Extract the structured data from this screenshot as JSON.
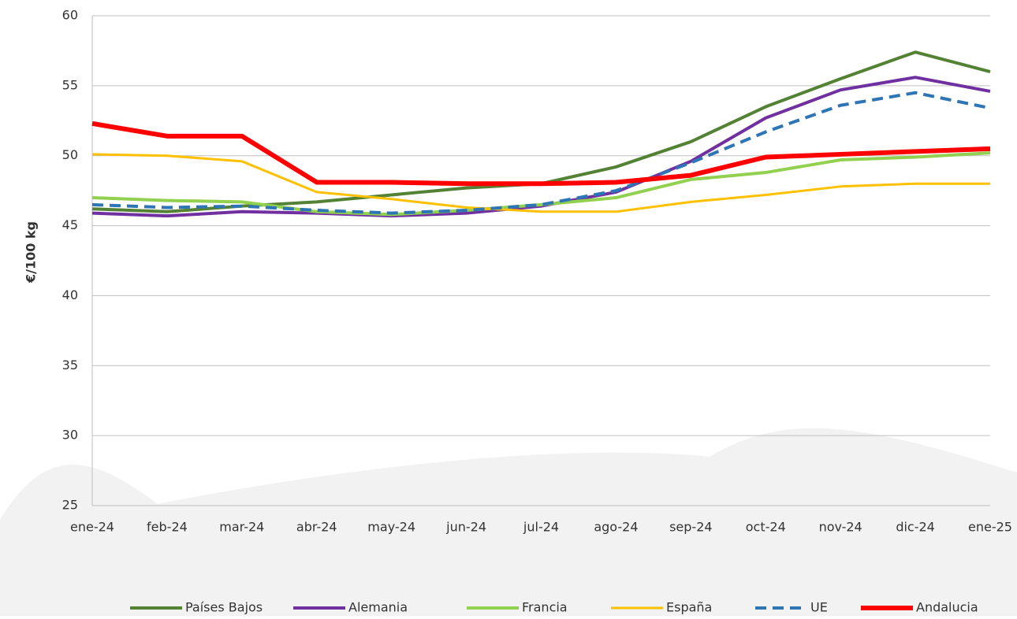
{
  "chart_data": {
    "type": "line",
    "y_label": "€/100 kg",
    "categories": [
      "ene-24",
      "feb-24",
      "mar-24",
      "abr-24",
      "may-24",
      "jun-24",
      "jul-24",
      "ago-24",
      "sep-24",
      "oct-24",
      "nov-24",
      "dic-24",
      "ene-25"
    ],
    "series": [
      {
        "name": "Países Bajos",
        "color": "#548235",
        "values": [
          46.2,
          46.0,
          46.4,
          46.7,
          47.2,
          47.7,
          48.0,
          49.2,
          51.0,
          53.5,
          55.5,
          57.4,
          56.0
        ]
      },
      {
        "name": "Alemania",
        "color": "#7030a0",
        "values": [
          45.9,
          45.7,
          46.0,
          45.9,
          45.7,
          45.9,
          46.4,
          47.4,
          49.6,
          52.7,
          54.7,
          55.6,
          54.6
        ]
      },
      {
        "name": "Francia",
        "color": "#92d050",
        "values": [
          47.0,
          46.8,
          46.7,
          46.0,
          45.8,
          46.1,
          46.5,
          47.0,
          48.3,
          48.8,
          49.7,
          49.9,
          50.2
        ]
      },
      {
        "name": "España",
        "color": "#ffc000",
        "values": [
          50.1,
          50.0,
          49.6,
          47.4,
          46.9,
          46.3,
          46.0,
          46.0,
          46.7,
          47.2,
          47.8,
          48.0,
          48.0
        ]
      },
      {
        "name": "UE",
        "color": "#2e75b6",
        "dashed": true,
        "values": [
          46.5,
          46.3,
          46.4,
          46.1,
          45.9,
          46.1,
          46.5,
          47.5,
          49.5,
          51.7,
          53.6,
          54.5,
          53.4
        ]
      },
      {
        "name": "Andalucia",
        "color": "#ff0000",
        "values": [
          52.3,
          51.4,
          51.4,
          48.1,
          48.1,
          48.0,
          48.0,
          48.1,
          48.6,
          49.9,
          50.1,
          50.3,
          50.5
        ]
      }
    ],
    "ylim": [
      25,
      60
    ],
    "yticks": [
      25,
      30,
      35,
      40,
      45,
      50,
      55,
      60
    ],
    "grid": true,
    "legend": "bottom"
  }
}
